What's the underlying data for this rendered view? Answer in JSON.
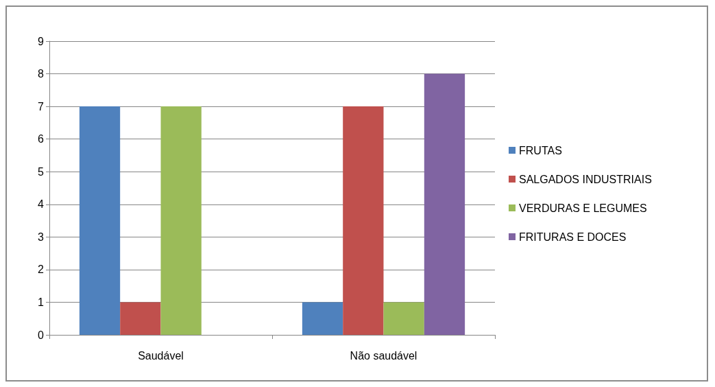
{
  "chart_data": {
    "type": "bar",
    "categories": [
      "Saudável",
      "Não saudável"
    ],
    "series": [
      {
        "name": "FRUTAS",
        "color": "#4f81bd",
        "values": [
          7,
          1
        ]
      },
      {
        "name": "SALGADOS INDUSTRIAIS",
        "color": "#c0504d",
        "values": [
          1,
          7
        ]
      },
      {
        "name": "VERDURAS E LEGUMES",
        "color": "#9bbb59",
        "values": [
          7,
          1
        ]
      },
      {
        "name": "FRITURAS E DOCES",
        "color": "#8064a2",
        "values": [
          0,
          8
        ]
      }
    ],
    "ylim": [
      0,
      9
    ],
    "yticks": [
      0,
      1,
      2,
      3,
      4,
      5,
      6,
      7,
      8,
      9
    ],
    "grid": "y",
    "legend": "right"
  }
}
